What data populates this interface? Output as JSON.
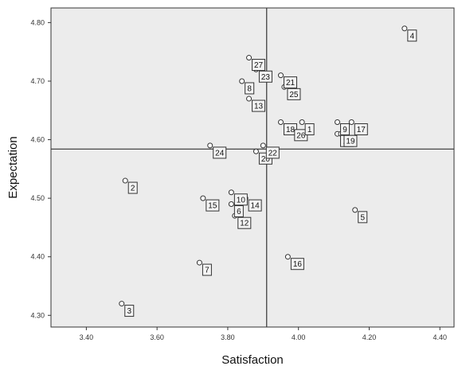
{
  "chart_data": {
    "type": "scatter",
    "xlabel": "Satisfaction",
    "ylabel": "Expectation",
    "xlim": [
      3.3,
      4.44
    ],
    "ylim": [
      4.28,
      4.825
    ],
    "x_ticks": [
      "3.40",
      "3.60",
      "3.80",
      "4.00",
      "4.20",
      "4.40"
    ],
    "y_ticks": [
      "4.30",
      "4.40",
      "4.50",
      "4.60",
      "4.70",
      "4.80"
    ],
    "reference_lines": {
      "x": 3.91,
      "y": 4.584
    },
    "grid": false,
    "colors": {
      "plot_background": "#ececec",
      "axis": "#333333",
      "marker_fill": "#ffffff",
      "marker_stroke": "#333333"
    },
    "points": [
      {
        "label": "2",
        "x": 3.51,
        "y": 4.53
      },
      {
        "label": "3",
        "x": 3.5,
        "y": 4.32
      },
      {
        "label": "4",
        "x": 4.3,
        "y": 4.79
      },
      {
        "label": "5",
        "x": 4.16,
        "y": 4.48
      },
      {
        "label": "6",
        "x": 3.81,
        "y": 4.49
      },
      {
        "label": "7",
        "x": 3.72,
        "y": 4.39
      },
      {
        "label": "8",
        "x": 3.84,
        "y": 4.7
      },
      {
        "label": "9",
        "x": 4.11,
        "y": 4.63
      },
      {
        "label": "10",
        "x": 3.81,
        "y": 4.51
      },
      {
        "label": "11",
        "x": 4.11,
        "y": 4.61
      },
      {
        "label": "12",
        "x": 3.82,
        "y": 4.47
      },
      {
        "label": "13",
        "x": 3.86,
        "y": 4.67
      },
      {
        "label": "14",
        "x": 3.85,
        "y": 4.5
      },
      {
        "label": "15",
        "x": 3.73,
        "y": 4.5
      },
      {
        "label": "16",
        "x": 3.97,
        "y": 4.4
      },
      {
        "label": "17",
        "x": 4.15,
        "y": 4.63
      },
      {
        "label": "18",
        "x": 3.95,
        "y": 4.63
      },
      {
        "label": "19",
        "x": 4.12,
        "y": 4.61
      },
      {
        "label": "20",
        "x": 3.88,
        "y": 4.58
      },
      {
        "label": "21",
        "x": 3.95,
        "y": 4.71
      },
      {
        "label": "22",
        "x": 3.9,
        "y": 4.59
      },
      {
        "label": "23",
        "x": 3.88,
        "y": 4.72
      },
      {
        "label": "24",
        "x": 3.75,
        "y": 4.59
      },
      {
        "label": "25",
        "x": 3.96,
        "y": 4.69
      },
      {
        "label": "26",
        "x": 3.98,
        "y": 4.62
      },
      {
        "label": "27",
        "x": 3.86,
        "y": 4.74
      },
      {
        "label": "1",
        "x": 4.01,
        "y": 4.63
      }
    ]
  }
}
